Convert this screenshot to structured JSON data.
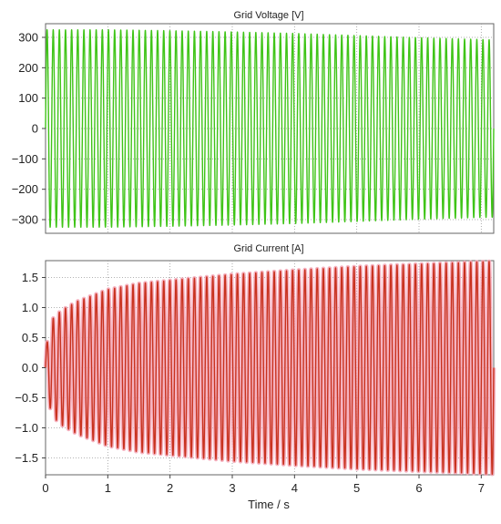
{
  "chart_data": [
    {
      "type": "line",
      "title": "Grid Voltage [V]",
      "xlim": [
        0,
        7.2
      ],
      "ylim": [
        -345,
        345
      ],
      "yticks": [
        300,
        200,
        100,
        0,
        -100,
        -200,
        -300
      ],
      "ytick_labels": [
        "300",
        "200",
        "100",
        "0",
        "−100",
        "−200",
        "−300"
      ],
      "grid": true,
      "series": [
        {
          "color": "#3fc417",
          "waveform": "sine",
          "cycles": 73,
          "amplitude_envelope": {
            "t": [
              0,
              1,
              2,
              3,
              4,
              5,
              6,
              7,
              7.2
            ],
            "peak": [
              325,
              325,
              322,
              318,
              313,
              306,
              299,
              293,
              292
            ]
          }
        }
      ]
    },
    {
      "type": "line",
      "title": "Grid Current [A]",
      "xlabel": "Time / s",
      "xlim": [
        0,
        7.2
      ],
      "ylim": [
        -1.78,
        1.78
      ],
      "xticks": [
        0,
        1,
        2,
        3,
        4,
        5,
        6,
        7
      ],
      "xtick_labels": [
        "0",
        "1",
        "2",
        "3",
        "4",
        "5",
        "6",
        "7"
      ],
      "yticks": [
        1.5,
        1.0,
        0.5,
        0.0,
        -0.5,
        -1.0,
        -1.5
      ],
      "ytick_labels": [
        "1.5",
        "1.0",
        "0.5",
        "0.0",
        "−0.5",
        "−1.0",
        "−1.5"
      ],
      "grid": true,
      "series": [
        {
          "color": "#c8321e",
          "halo_color": "#f4a6b6",
          "waveform": "sine",
          "cycles": 73,
          "amplitude_envelope": {
            "t": [
              0,
              0.05,
              0.1,
              0.25,
              0.5,
              1,
              1.5,
              2,
              2.5,
              3,
              4,
              5,
              6,
              7,
              7.2
            ],
            "peak": [
              0.3,
              0.55,
              0.8,
              0.95,
              1.1,
              1.3,
              1.4,
              1.45,
              1.5,
              1.55,
              1.62,
              1.68,
              1.72,
              1.76,
              1.77
            ]
          }
        }
      ]
    }
  ]
}
